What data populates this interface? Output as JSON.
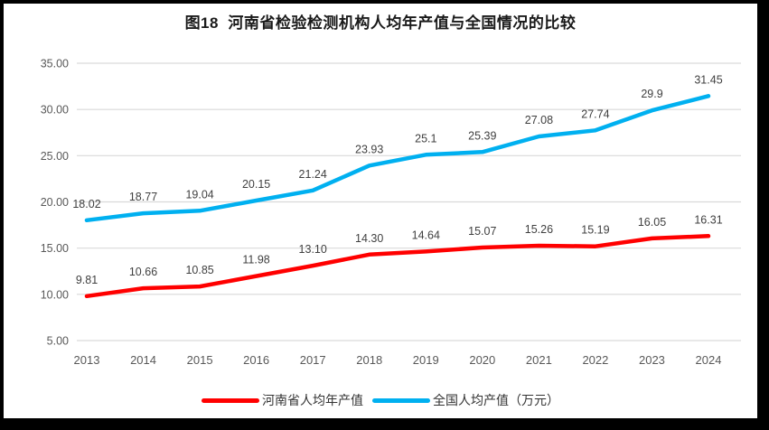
{
  "chart_title": "图18  河南省检验检测机构人均年产值与全国情况的比较",
  "colors": {
    "henan_line": "#FF0000",
    "national_line": "#00B0F0",
    "gridline": "#D9D9D9",
    "axis_text": "#595959",
    "data_label_text": "#3F3F3F",
    "frame_border": "#000000",
    "background": "#FFFFFF"
  },
  "legend": {
    "items": [
      {
        "label": "河南省人均年产值",
        "color_key": "henan_line"
      },
      {
        "label": "全国人均产值（万元）",
        "color_key": "national_line"
      }
    ]
  },
  "chart_data": {
    "type": "line",
    "title": "图18  河南省检验检测机构人均年产值与全国情况的比较",
    "categories": [
      "2013",
      "2014",
      "2015",
      "2016",
      "2017",
      "2018",
      "2019",
      "2020",
      "2021",
      "2022",
      "2023",
      "2024"
    ],
    "series": [
      {
        "name": "河南省人均年产值",
        "color_key": "henan_line",
        "data_name": "henan-series-line",
        "values": [
          9.81,
          10.66,
          10.85,
          11.98,
          13.1,
          14.3,
          14.64,
          15.07,
          15.26,
          15.19,
          16.05,
          16.31
        ],
        "labels": [
          "9.81",
          "10.66",
          "10.85",
          "11.98",
          "13.10",
          "14.30",
          "14.64",
          "15.07",
          "15.26",
          "15.19",
          "16.05",
          "16.31"
        ]
      },
      {
        "name": "全国人均产值（万元）",
        "color_key": "national_line",
        "data_name": "national-series-line",
        "values": [
          18.02,
          18.77,
          19.04,
          20.15,
          21.24,
          23.93,
          25.1,
          25.39,
          27.08,
          27.74,
          29.9,
          31.45
        ],
        "labels": [
          "18.02",
          "18.77",
          "19.04",
          "20.15",
          "21.24",
          "23.93",
          "25.1",
          "25.39",
          "27.08",
          "27.74",
          "29.9",
          "31.45"
        ]
      }
    ],
    "ylim": [
      5,
      35
    ],
    "ytick_step": 5,
    "ytick_labels": [
      "5.00",
      "10.00",
      "15.00",
      "20.00",
      "25.00",
      "30.00",
      "35.00"
    ],
    "xlabel": "",
    "ylabel": "",
    "grid": true,
    "legend_position": "bottom"
  }
}
